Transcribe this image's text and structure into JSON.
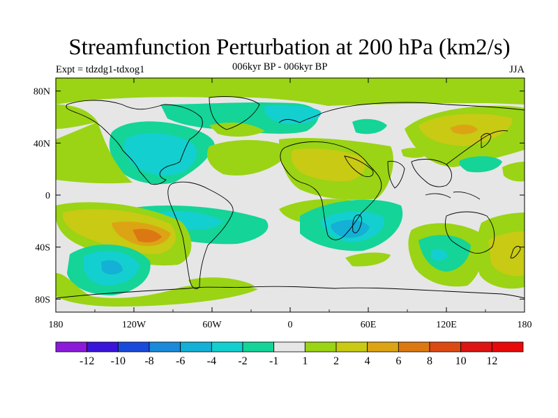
{
  "chart_data": {
    "type": "heatmap",
    "title": "Streamfunction Perturbation at 200 hPa (km2/s)",
    "left_string": "Expt = tdzdg1-tdxog1",
    "center_string": "006kyr BP - 006kyr BP",
    "right_string": "JJA",
    "x_ticks": [
      "180",
      "120W",
      "60W",
      "0",
      "60E",
      "120E",
      "180"
    ],
    "y_ticks": [
      "80N",
      "40N",
      "0",
      "40S",
      "80S"
    ],
    "xlim": [
      -180,
      180
    ],
    "ylim": [
      -90,
      90
    ],
    "colorbar": {
      "labels": [
        "-12",
        "-10",
        "-8",
        "-6",
        "-4",
        "-2",
        "-1",
        "1",
        "2",
        "4",
        "6",
        "8",
        "10",
        "12"
      ],
      "levels": [
        -12,
        -10,
        -8,
        -6,
        -4,
        -2,
        -1,
        1,
        2,
        4,
        6,
        8,
        10,
        12
      ],
      "colors": [
        "#8c1ad9",
        "#3a14d9",
        "#1a4ad9",
        "#1a8ad9",
        "#14b0d6",
        "#14cfcf",
        "#14d498",
        "#e6e6e6",
        "#9ad414",
        "#c8ca14",
        "#dca414",
        "#dc7814",
        "#dc4a14",
        "#dc1414",
        "#e80a0a"
      ]
    },
    "background_color": "#e6e6e6"
  }
}
